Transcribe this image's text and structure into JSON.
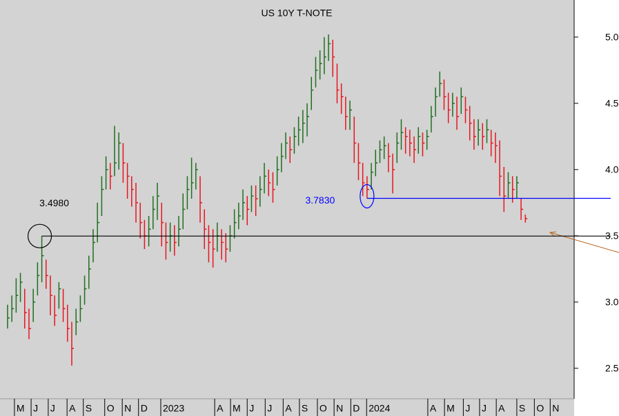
{
  "chart_data": {
    "type": "hlc",
    "title": "US 10Y T-NOTE",
    "up_color": "#1f6e1f",
    "down_color": "#e8141e",
    "close": [
      2.88,
      2.95,
      3.05,
      3.15,
      2.92,
      2.8,
      3.0,
      3.2,
      3.35,
      3.2,
      3.05,
      2.9,
      3.1,
      2.95,
      2.8,
      2.65,
      2.85,
      2.95,
      3.1,
      3.25,
      3.45,
      3.6,
      3.85,
      4.0,
      3.95,
      4.05,
      4.2,
      4.05,
      3.95,
      3.85,
      3.75,
      3.6,
      3.5,
      3.55,
      3.7,
      3.8,
      3.6,
      3.45,
      3.5,
      3.45,
      3.55,
      3.7,
      3.85,
      3.9,
      4.0,
      3.75,
      3.55,
      3.45,
      3.4,
      3.5,
      3.45,
      3.4,
      3.5,
      3.6,
      3.65,
      3.75,
      3.7,
      3.8,
      3.78,
      3.85,
      3.95,
      3.9,
      3.85,
      4.0,
      4.1,
      4.2,
      4.15,
      4.25,
      4.3,
      4.35,
      4.4,
      4.6,
      4.75,
      4.8,
      4.85,
      4.95,
      4.85,
      4.6,
      4.55,
      4.4,
      4.45,
      4.2,
      4.05,
      3.9,
      3.85,
      3.98,
      4.05,
      4.15,
      4.18,
      4.1,
      4.0,
      4.2,
      4.28,
      4.25,
      4.2,
      4.15,
      4.25,
      4.2,
      4.25,
      4.4,
      4.55,
      4.65,
      4.55,
      4.45,
      4.5,
      4.4,
      4.55,
      4.45,
      4.35,
      4.25,
      4.3,
      4.25,
      4.3,
      4.2,
      4.18,
      3.95,
      3.8,
      3.9,
      3.85,
      3.9,
      3.7,
      3.63
    ],
    "high": [
      2.98,
      3.05,
      3.18,
      3.22,
      3.1,
      2.95,
      3.1,
      3.3,
      3.498,
      3.32,
      3.2,
      3.05,
      3.15,
      3.1,
      2.98,
      2.85,
      2.95,
      3.05,
      3.2,
      3.35,
      3.55,
      3.75,
      3.95,
      4.1,
      4.05,
      4.33,
      4.28,
      4.2,
      4.05,
      3.95,
      3.9,
      3.75,
      3.62,
      3.65,
      3.8,
      3.9,
      3.75,
      3.6,
      3.6,
      3.58,
      3.65,
      3.82,
      3.95,
      4.09,
      4.05,
      3.95,
      3.7,
      3.58,
      3.55,
      3.6,
      3.55,
      3.52,
      3.58,
      3.7,
      3.75,
      3.85,
      3.8,
      3.88,
      3.88,
      3.95,
      4.05,
      4.0,
      3.98,
      4.1,
      4.2,
      4.28,
      4.25,
      4.32,
      4.4,
      4.45,
      4.5,
      4.7,
      4.85,
      4.9,
      5.0,
      5.02,
      4.98,
      4.8,
      4.65,
      4.55,
      4.52,
      4.4,
      4.2,
      4.05,
      3.95,
      4.05,
      4.15,
      4.22,
      4.25,
      4.2,
      4.12,
      4.28,
      4.38,
      4.32,
      4.3,
      4.25,
      4.32,
      4.28,
      4.3,
      4.48,
      4.62,
      4.74,
      4.68,
      4.58,
      4.58,
      4.55,
      4.62,
      4.55,
      4.48,
      4.38,
      4.38,
      4.35,
      4.38,
      4.3,
      4.28,
      4.22,
      4.02,
      3.98,
      3.95,
      3.95,
      3.78,
      3.66
    ],
    "low": [
      2.8,
      2.85,
      2.92,
      3.0,
      2.8,
      2.72,
      2.85,
      3.05,
      3.15,
      3.1,
      2.9,
      2.82,
      2.95,
      2.85,
      2.7,
      2.52,
      2.75,
      2.85,
      2.98,
      3.1,
      3.3,
      3.45,
      3.65,
      3.85,
      3.85,
      3.95,
      4.0,
      3.9,
      3.78,
      3.72,
      3.6,
      3.48,
      3.4,
      3.42,
      3.55,
      3.62,
      3.42,
      3.32,
      3.38,
      3.35,
      3.42,
      3.55,
      3.7,
      3.78,
      3.85,
      3.6,
      3.4,
      3.3,
      3.26,
      3.38,
      3.32,
      3.3,
      3.38,
      3.48,
      3.55,
      3.62,
      3.58,
      3.68,
      3.65,
      3.72,
      3.82,
      3.8,
      3.75,
      3.88,
      3.98,
      4.08,
      4.05,
      4.12,
      4.18,
      4.2,
      4.25,
      4.45,
      4.62,
      4.68,
      4.72,
      4.82,
      4.7,
      4.5,
      4.42,
      4.3,
      4.3,
      4.05,
      3.92,
      3.8,
      3.783,
      3.85,
      3.95,
      4.05,
      4.08,
      3.98,
      3.82,
      4.05,
      4.15,
      4.12,
      4.1,
      4.05,
      4.12,
      4.1,
      4.15,
      4.28,
      4.4,
      4.55,
      4.45,
      4.35,
      4.4,
      4.3,
      4.42,
      4.35,
      4.22,
      4.15,
      4.18,
      4.15,
      4.2,
      4.1,
      4.05,
      3.8,
      3.68,
      3.78,
      3.75,
      3.78,
      3.62,
      3.6
    ],
    "xlim": [
      -1.77,
      132.4
    ],
    "xticks": [
      {
        "value": 1.6,
        "label": "M"
      },
      {
        "value": 5.5,
        "label": "J"
      },
      {
        "value": 9.5,
        "label": "J"
      },
      {
        "value": 13.9,
        "label": "A"
      },
      {
        "value": 17.7,
        "label": "S"
      },
      {
        "value": 22.7,
        "label": "O"
      },
      {
        "value": 26.8,
        "label": "N"
      },
      {
        "value": 30.6,
        "label": "D"
      },
      {
        "value": 35.8,
        "label": "2023"
      },
      {
        "value": 48.4,
        "label": "A"
      },
      {
        "value": 52.1,
        "label": "M"
      },
      {
        "value": 56,
        "label": "J"
      },
      {
        "value": 60.2,
        "label": "J"
      },
      {
        "value": 64.4,
        "label": "A"
      },
      {
        "value": 68.2,
        "label": "S"
      },
      {
        "value": 72.4,
        "label": "O"
      },
      {
        "value": 76.3,
        "label": "N"
      },
      {
        "value": 80.2,
        "label": "D"
      },
      {
        "value": 83.9,
        "label": "2024"
      },
      {
        "value": 98.2,
        "label": "A"
      },
      {
        "value": 102.1,
        "label": "M"
      },
      {
        "value": 106.5,
        "label": "J"
      },
      {
        "value": 110.3,
        "label": "J"
      },
      {
        "value": 114.2,
        "label": "A"
      },
      {
        "value": 119,
        "label": "S"
      },
      {
        "value": 123.1,
        "label": "O"
      },
      {
        "value": 126.8,
        "label": "N"
      }
    ],
    "ylim": [
      2.27,
      5.28
    ],
    "yticks": [
      {
        "value": 2.5,
        "label": "2.5"
      },
      {
        "value": 3,
        "label": "3.0"
      },
      {
        "value": 3.5,
        "label": "3.5"
      },
      {
        "value": 4,
        "label": "4.0"
      },
      {
        "value": 4.5,
        "label": "4.5"
      },
      {
        "value": 5,
        "label": "5.0"
      }
    ],
    "annotations": [
      {
        "text": "3.4980",
        "value": 3.498,
        "color": "#000000",
        "anchor": "high"
      },
      {
        "text": "3.7830",
        "value": 3.783,
        "color": "#0000ff",
        "anchor": "low"
      }
    ]
  }
}
